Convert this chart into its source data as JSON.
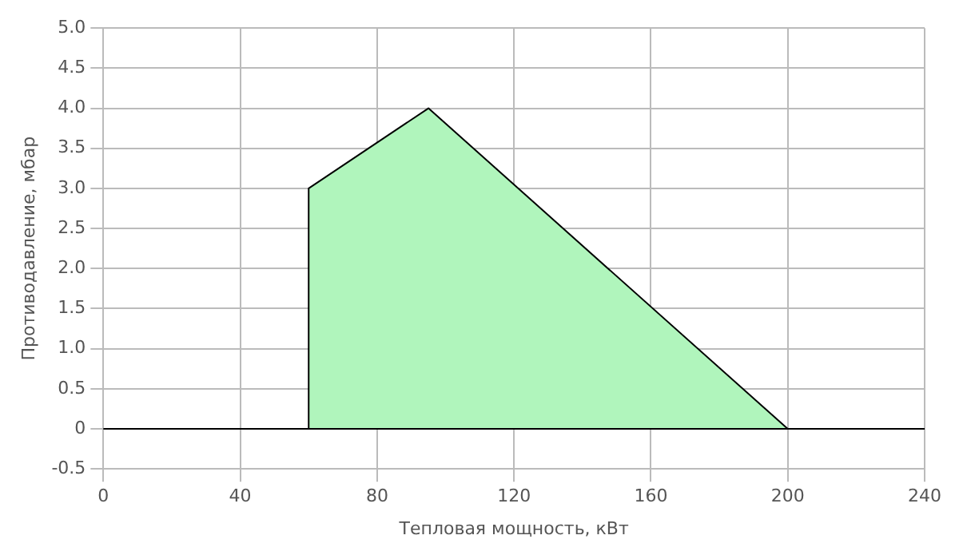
{
  "chart_data": {
    "type": "area",
    "xlabel": "Тепловая мощность, кВт",
    "ylabel": "Противодавление, мбар",
    "series": [
      {
        "color": "#b0f5bc",
        "x": [
          60,
          60,
          95,
          200
        ],
        "values": [
          0,
          3,
          4,
          0
        ]
      }
    ],
    "xlim": [
      0,
      240
    ],
    "xticks": [
      0,
      40,
      80,
      120,
      160,
      200,
      240
    ],
    "ylim": [
      -0.5,
      5
    ],
    "yticks": [
      -0.5,
      0,
      0.5,
      {
        "value": 1,
        "label": "1.0"
      },
      1.5,
      {
        "value": 2,
        "label": "2.0"
      },
      2.5,
      {
        "value": 3,
        "label": "3.0"
      },
      3.5,
      {
        "value": 4,
        "label": "4.0"
      },
      4.5,
      {
        "value": 5,
        "label": "5.0"
      }
    ],
    "grid": true,
    "legend": false,
    "ref_lines": [
      {
        "axis": "y",
        "value": 0,
        "color": "#000000"
      }
    ]
  }
}
